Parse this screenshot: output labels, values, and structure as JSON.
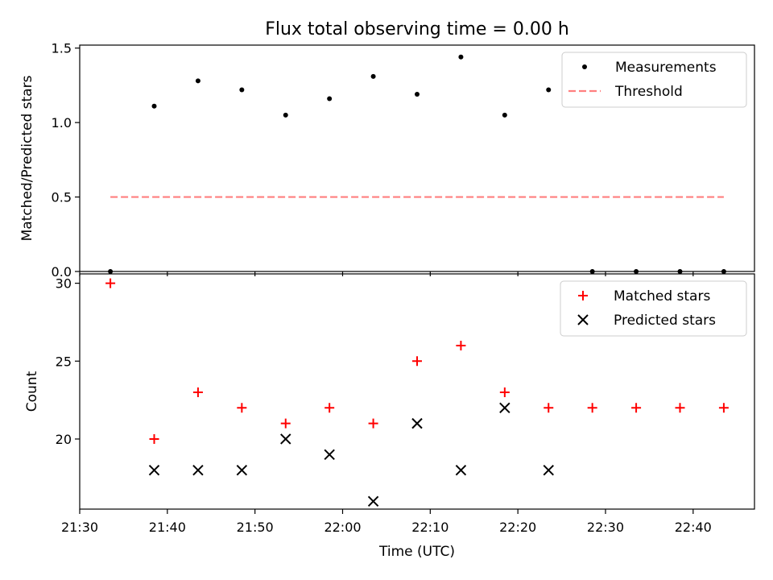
{
  "figure": {
    "title": "Flux total observing time = 0.00 h"
  },
  "chart_data": [
    {
      "type": "scatter",
      "ylabel": "Matched/Predicted stars",
      "ylim": [
        0,
        1.52
      ],
      "yticks": [
        0.0,
        0.5,
        1.0,
        1.5
      ],
      "ytick_labels": [
        "0.0",
        "0.5",
        "1.0",
        "1.5"
      ],
      "xlim": [
        "21:30",
        "22:47"
      ],
      "grid": false,
      "legend_position": "upper right",
      "series": [
        {
          "name": "Measurements",
          "marker": "dot",
          "color": "#000000",
          "x": [
            "21:33:30",
            "21:38:30",
            "21:43:30",
            "21:48:30",
            "21:53:30",
            "21:58:30",
            "22:03:30",
            "22:08:30",
            "22:13:30",
            "22:18:30",
            "22:23:30",
            "22:28:30",
            "22:33:30",
            "22:38:30",
            "22:43:30"
          ],
          "y": [
            0.0,
            1.11,
            1.28,
            1.22,
            1.05,
            1.16,
            1.31,
            1.19,
            1.44,
            1.05,
            1.22,
            0.0,
            0.0,
            0.0,
            0.0
          ]
        },
        {
          "name": "Threshold",
          "marker": "dashed-line",
          "color": "#ff7f7f",
          "x": [
            "21:33:30",
            "22:43:30"
          ],
          "y": [
            0.5,
            0.5
          ]
        }
      ]
    },
    {
      "type": "scatter",
      "ylabel": "Count",
      "xlabel": "Time (UTC)",
      "ylim": [
        15.5,
        30.6
      ],
      "yticks": [
        20,
        25,
        30
      ],
      "ytick_labels": [
        "20",
        "25",
        "30"
      ],
      "xlim": [
        "21:30",
        "22:47"
      ],
      "xticks": [
        "21:30",
        "21:40",
        "21:50",
        "22:00",
        "22:10",
        "22:20",
        "22:30",
        "22:40"
      ],
      "xtick_labels": [
        "21:30",
        "21:40",
        "21:50",
        "22:00",
        "22:10",
        "22:20",
        "22:30",
        "22:40"
      ],
      "grid": false,
      "legend_position": "upper right",
      "series": [
        {
          "name": "Matched stars",
          "marker": "plus",
          "color": "#ff0000",
          "x": [
            "21:33:30",
            "21:38:30",
            "21:43:30",
            "21:48:30",
            "21:53:30",
            "21:58:30",
            "22:03:30",
            "22:08:30",
            "22:13:30",
            "22:18:30",
            "22:23:30",
            "22:28:30",
            "22:33:30",
            "22:38:30",
            "22:43:30"
          ],
          "y": [
            30,
            20,
            23,
            22,
            21,
            22,
            21,
            25,
            26,
            23,
            22,
            22,
            22,
            22,
            22
          ]
        },
        {
          "name": "Predicted stars",
          "marker": "x",
          "color": "#000000",
          "x": [
            "21:38:30",
            "21:43:30",
            "21:48:30",
            "21:53:30",
            "21:58:30",
            "22:03:30",
            "22:08:30",
            "22:13:30",
            "22:18:30",
            "22:23:30"
          ],
          "y": [
            18,
            18,
            18,
            20,
            19,
            16,
            21,
            18,
            22,
            18
          ]
        }
      ]
    }
  ]
}
